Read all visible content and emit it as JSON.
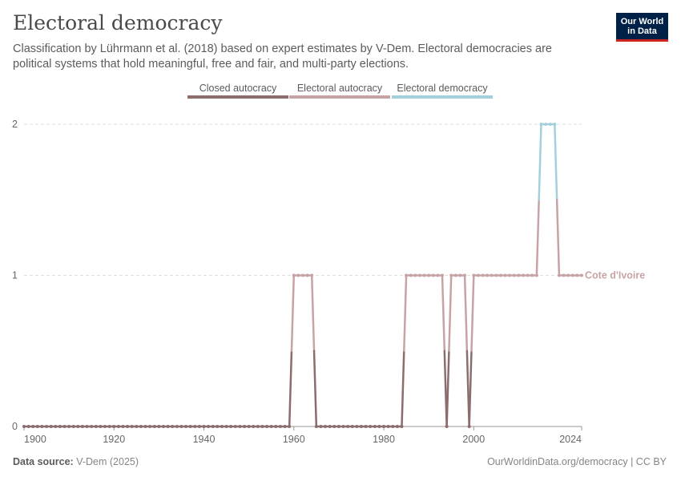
{
  "header": {
    "title": "Electoral democracy",
    "subtitle": "Classification by Lührmann et al. (2018) based on expert estimates by V-Dem. Electoral democracies are political systems that hold meaningful, free and fair, and multi-party elections."
  },
  "logo": {
    "line1": "Our World",
    "line2": "in Data"
  },
  "footer": {
    "source_label": "Data source:",
    "source_value": "V-Dem (2025)",
    "url": "OurWorldinData.org/democracy | CC BY"
  },
  "colors": {
    "closed": "#8c6d6e",
    "electoral_autocracy": "#c7a3a6",
    "electoral_democracy": "#a2d1dc",
    "grid": "#dddddd",
    "axis_text": "#666666"
  },
  "chart_data": {
    "type": "line",
    "title": "Electoral democracy",
    "xlabel": "",
    "ylabel": "",
    "xlim": [
      1900,
      2024
    ],
    "ylim": [
      0,
      2
    ],
    "x_ticks": [
      "1900",
      "1920",
      "1940",
      "1960",
      "1980",
      "2000",
      "2024"
    ],
    "y_ticks": [
      "0",
      "1",
      "2"
    ],
    "legend": {
      "position": "top",
      "items": [
        "Closed autocracy",
        "Electoral autocracy",
        "Electoral democracy"
      ]
    },
    "series": [
      {
        "name": "Cote d'Ivoire",
        "start_year": 1900,
        "end_year": 2024,
        "values": [
          0,
          0,
          0,
          0,
          0,
          0,
          0,
          0,
          0,
          0,
          0,
          0,
          0,
          0,
          0,
          0,
          0,
          0,
          0,
          0,
          0,
          0,
          0,
          0,
          0,
          0,
          0,
          0,
          0,
          0,
          0,
          0,
          0,
          0,
          0,
          0,
          0,
          0,
          0,
          0,
          0,
          0,
          0,
          0,
          0,
          0,
          0,
          0,
          0,
          0,
          0,
          0,
          0,
          0,
          0,
          0,
          0,
          0,
          0,
          0,
          1,
          1,
          1,
          1,
          1,
          0,
          0,
          0,
          0,
          0,
          0,
          0,
          0,
          0,
          0,
          0,
          0,
          0,
          0,
          0,
          0,
          0,
          0,
          0,
          0,
          1,
          1,
          1,
          1,
          1,
          1,
          1,
          1,
          1,
          0,
          1,
          1,
          1,
          1,
          0,
          1,
          1,
          1,
          1,
          1,
          1,
          1,
          1,
          1,
          1,
          1,
          1,
          1,
          1,
          1,
          2,
          2,
          2,
          2,
          1,
          1,
          1,
          1,
          1,
          1
        ]
      }
    ]
  }
}
